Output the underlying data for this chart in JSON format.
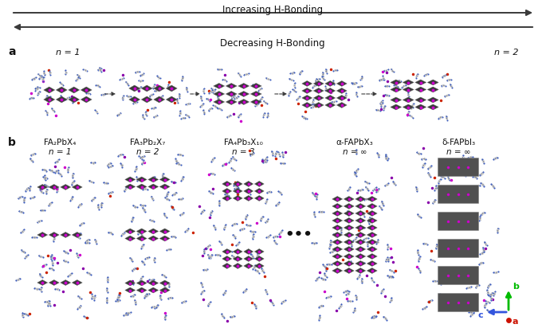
{
  "title_top": "Increasing H-Bonding",
  "title_bottom": "Decreasing H-Bonding",
  "label_a": "a",
  "label_b": "b",
  "panel_a_n1": "n = 1",
  "panel_a_n2": "n = 2",
  "panel_b_labels": [
    {
      "formula": "FA₂PbX₄",
      "n": "n = 1"
    },
    {
      "formula": "FA₃Pb₂X₇",
      "n": "n = 2"
    },
    {
      "formula": "FA₄Pb₃X₁₀",
      "n": "n = 3"
    },
    {
      "formula": "α-FAPbX₃",
      "n": "n = ∞"
    },
    {
      "formula": "δ-FAPbI₃",
      "n": "n = ∞"
    }
  ],
  "ellipsis": "•••",
  "arrow_color": "#3a3a3a",
  "text_color": "#111111",
  "bg_color": "#ffffff",
  "perov_dark": "#3a3a3a",
  "perov_mid": "#606060",
  "Pb_color": "#cc00cc",
  "halide_outer": "#b000b0",
  "FA_blue": "#4060c0",
  "FA_gray": "#909090",
  "dot_red": "#cc2200",
  "dot_purple": "#8800aa",
  "axis_b": "#00bb00",
  "axis_c": "#3355dd",
  "axis_a": "#cc1100"
}
